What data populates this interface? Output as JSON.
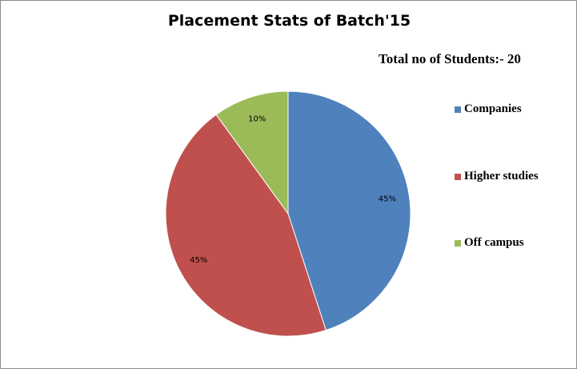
{
  "chart_data": {
    "type": "pie",
    "title": "Placement Stats of Batch'15",
    "annotation": "Total no of Students:- 20",
    "slices": [
      {
        "label": "Companies",
        "value": 45,
        "display": "45%",
        "color": "#4F81BD"
      },
      {
        "label": "Higher studies",
        "value": 45,
        "display": "45%",
        "color": "#C0504D"
      },
      {
        "label": "Off campus",
        "value": 10,
        "display": "10%",
        "color": "#9BBB59"
      }
    ],
    "legend_position": "right"
  }
}
